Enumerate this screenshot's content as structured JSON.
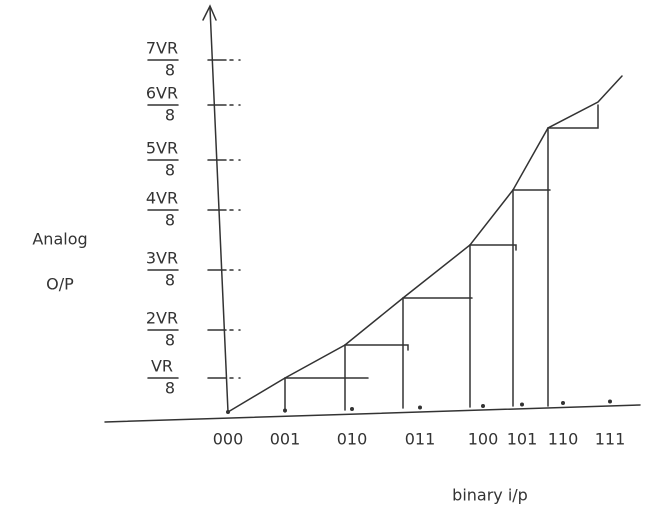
{
  "diagram": {
    "y_label": [
      "Analog",
      "O/P"
    ],
    "x_label": "binary i/p",
    "x_ticks": [
      "000",
      "001",
      "010",
      "011",
      "100",
      "101",
      "110",
      "111"
    ],
    "y_ticks": [
      {
        "numerator": "VR",
        "denominator": "8"
      },
      {
        "numerator": "2VR",
        "denominator": "8"
      },
      {
        "numerator": "3VR",
        "denominator": "8"
      },
      {
        "numerator": "4VR",
        "denominator": "8"
      },
      {
        "numerator": "5VR",
        "denominator": "8"
      },
      {
        "numerator": "6VR",
        "denominator": "8"
      },
      {
        "numerator": "7VR",
        "denominator": "8"
      }
    ]
  }
}
